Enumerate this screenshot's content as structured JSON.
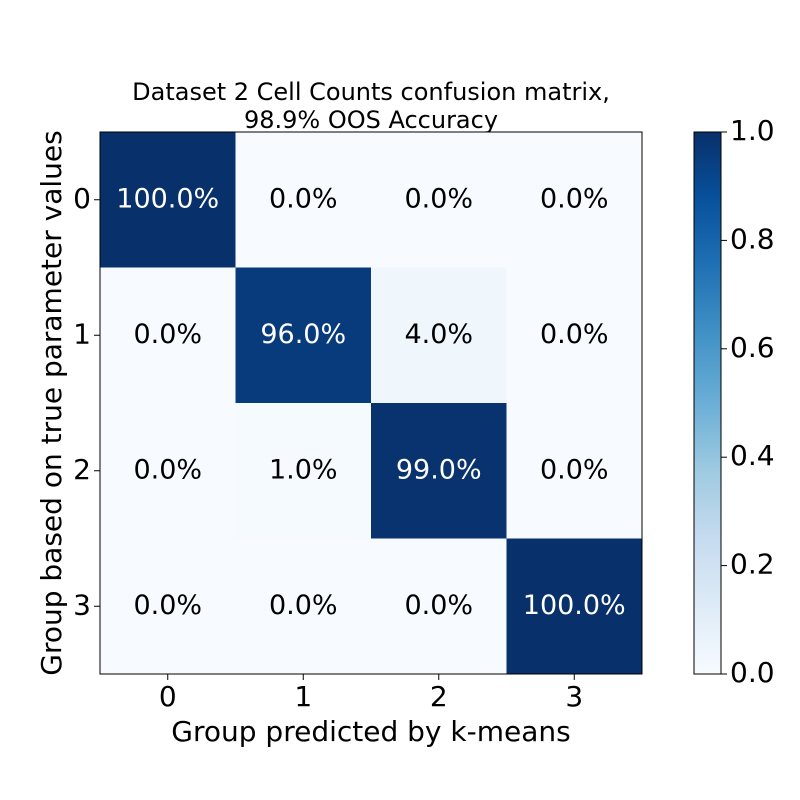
{
  "chart_data": {
    "type": "heatmap",
    "title": [
      "Dataset 2 Cell Counts confusion matrix,",
      "98.9% OOS Accuracy"
    ],
    "xlabel": "Group predicted by k-means",
    "ylabel": "Group based on true parameter values",
    "x_categories": [
      "0",
      "1",
      "2",
      "3"
    ],
    "y_categories": [
      "0",
      "1",
      "2",
      "3"
    ],
    "values": [
      [
        1.0,
        0.0,
        0.0,
        0.0
      ],
      [
        0.0,
        0.96,
        0.04,
        0.0
      ],
      [
        0.0,
        0.01,
        0.99,
        0.0
      ],
      [
        0.0,
        0.0,
        0.0,
        1.0
      ]
    ],
    "cell_labels": [
      [
        "100.0%",
        "0.0%",
        "0.0%",
        "0.0%"
      ],
      [
        "0.0%",
        "96.0%",
        "4.0%",
        "0.0%"
      ],
      [
        "0.0%",
        "1.0%",
        "99.0%",
        "0.0%"
      ],
      [
        "0.0%",
        "0.0%",
        "0.0%",
        "100.0%"
      ]
    ],
    "colorbar": {
      "range": [
        0.0,
        1.0
      ],
      "ticks": [
        "0.0",
        "0.2",
        "0.4",
        "0.6",
        "0.8",
        "1.0"
      ],
      "colormap": "Blues",
      "low_color": "#f7fbff",
      "high_color": "#08306b"
    },
    "grid": false
  }
}
